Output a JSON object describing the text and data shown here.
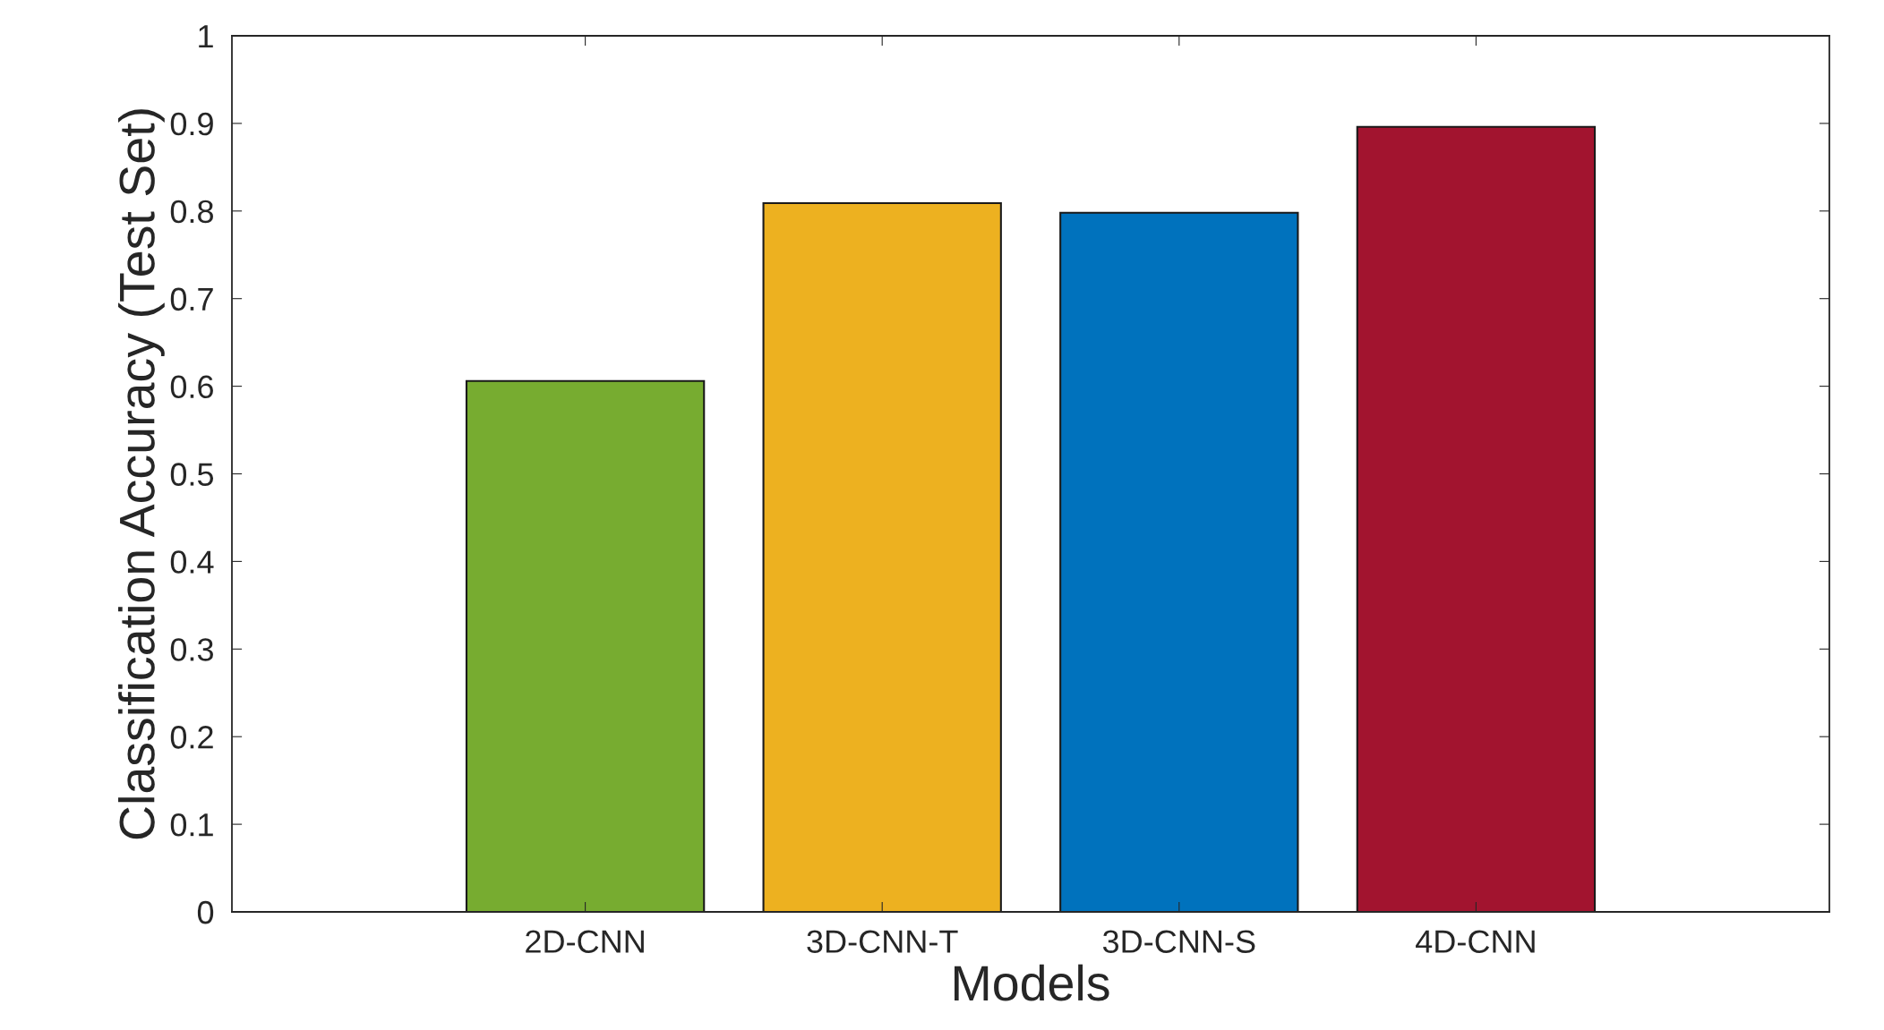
{
  "chart_data": {
    "type": "bar",
    "xlabel": "Models",
    "ylabel": "Classification Accuracy (Test Set)",
    "categories": [
      "2D-CNN",
      "3D-CNN-T",
      "3D-CNN-S",
      "4D-CNN"
    ],
    "values": [
      0.606,
      0.809,
      0.798,
      0.896
    ],
    "colors": [
      "#77ac30",
      "#edb120",
      "#0072bd",
      "#a2142f"
    ],
    "ylim": [
      0,
      1
    ],
    "yticks": [
      0,
      0.1,
      0.2,
      0.3,
      0.4,
      0.5,
      0.6,
      0.7,
      0.8,
      0.9,
      1
    ],
    "grid": false,
    "legend": false
  }
}
